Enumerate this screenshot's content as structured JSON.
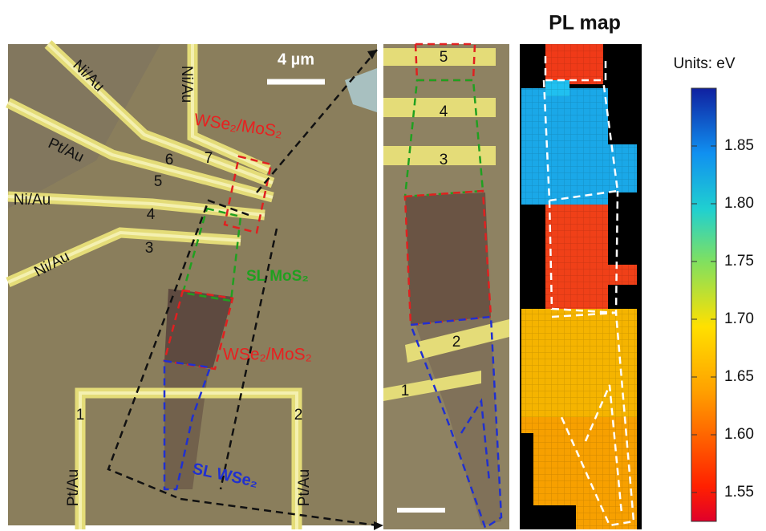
{
  "header": {
    "title": "PL map"
  },
  "left_image": {
    "scale_bar": "4 µm",
    "electrode_labels": [
      "Ni/Au",
      "Ni/Au",
      "Pt/Au",
      "Ni/Au",
      "Ni/Au",
      "Pt/Au",
      "Pt/Au"
    ],
    "electrode_numbers": [
      "6",
      "7",
      "5",
      "4",
      "3",
      "1",
      "2"
    ],
    "region_labels": [
      "WSe₂/MoS₂",
      "SL MoS₂",
      "WSe₂/MoS₂",
      "SL WSe₂"
    ]
  },
  "zoom_image": {
    "electrode_numbers": [
      "5",
      "4",
      "3",
      "2",
      "1"
    ]
  },
  "colorbar": {
    "title": "Units: eV",
    "clim": [
      1.525,
      1.9
    ],
    "ticks": [
      1.55,
      {
        "value": 1.6,
        "label": "1.60"
      },
      1.65,
      {
        "value": 1.7,
        "label": "1.70"
      },
      1.75,
      {
        "value": 1.8,
        "label": "1.80"
      },
      1.85
    ]
  }
}
